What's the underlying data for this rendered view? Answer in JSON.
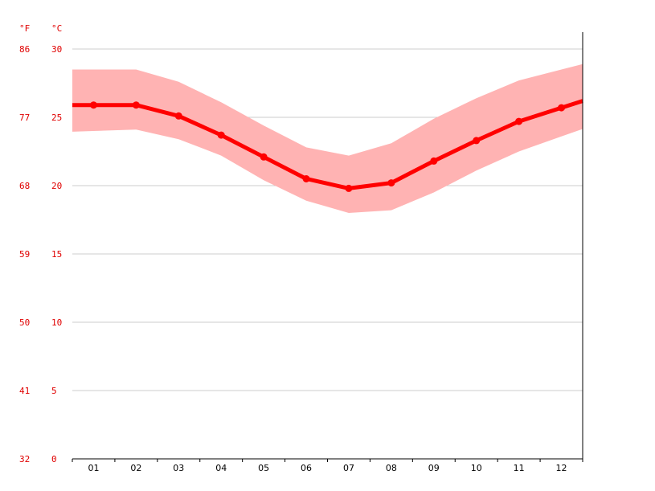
{
  "chart_data": {
    "type": "area",
    "x_label": "",
    "y_label": "",
    "y_units": {
      "left": "°F",
      "right": "°C"
    },
    "categories": [
      "01",
      "02",
      "03",
      "04",
      "05",
      "06",
      "07",
      "08",
      "09",
      "10",
      "11",
      "12"
    ],
    "y_ticks_c": [
      0,
      5,
      10,
      15,
      20,
      25,
      30
    ],
    "y_ticks_f": [
      32,
      41,
      50,
      59,
      68,
      77,
      86
    ],
    "ylim_c": [
      0,
      30
    ],
    "grid": true,
    "colors": {
      "line": "#ff0000",
      "band": "#ffb3b3",
      "axis_text": "#e00000"
    },
    "series": [
      {
        "values": [
          25.9,
          25.9,
          25.1,
          23.7,
          22.1,
          20.5,
          19.8,
          20.2,
          21.8,
          23.3,
          24.7,
          25.7
        ]
      },
      {
        "role": "max",
        "values": [
          28.5,
          28.5,
          27.6,
          26.1,
          24.4,
          22.8,
          22.2,
          23.1,
          24.9,
          26.4,
          27.7,
          28.5
        ]
      },
      {
        "role": "min",
        "values": [
          24.0,
          24.1,
          23.4,
          22.2,
          20.4,
          18.9,
          18.0,
          18.2,
          19.5,
          21.1,
          22.5,
          23.6
        ]
      }
    ]
  }
}
